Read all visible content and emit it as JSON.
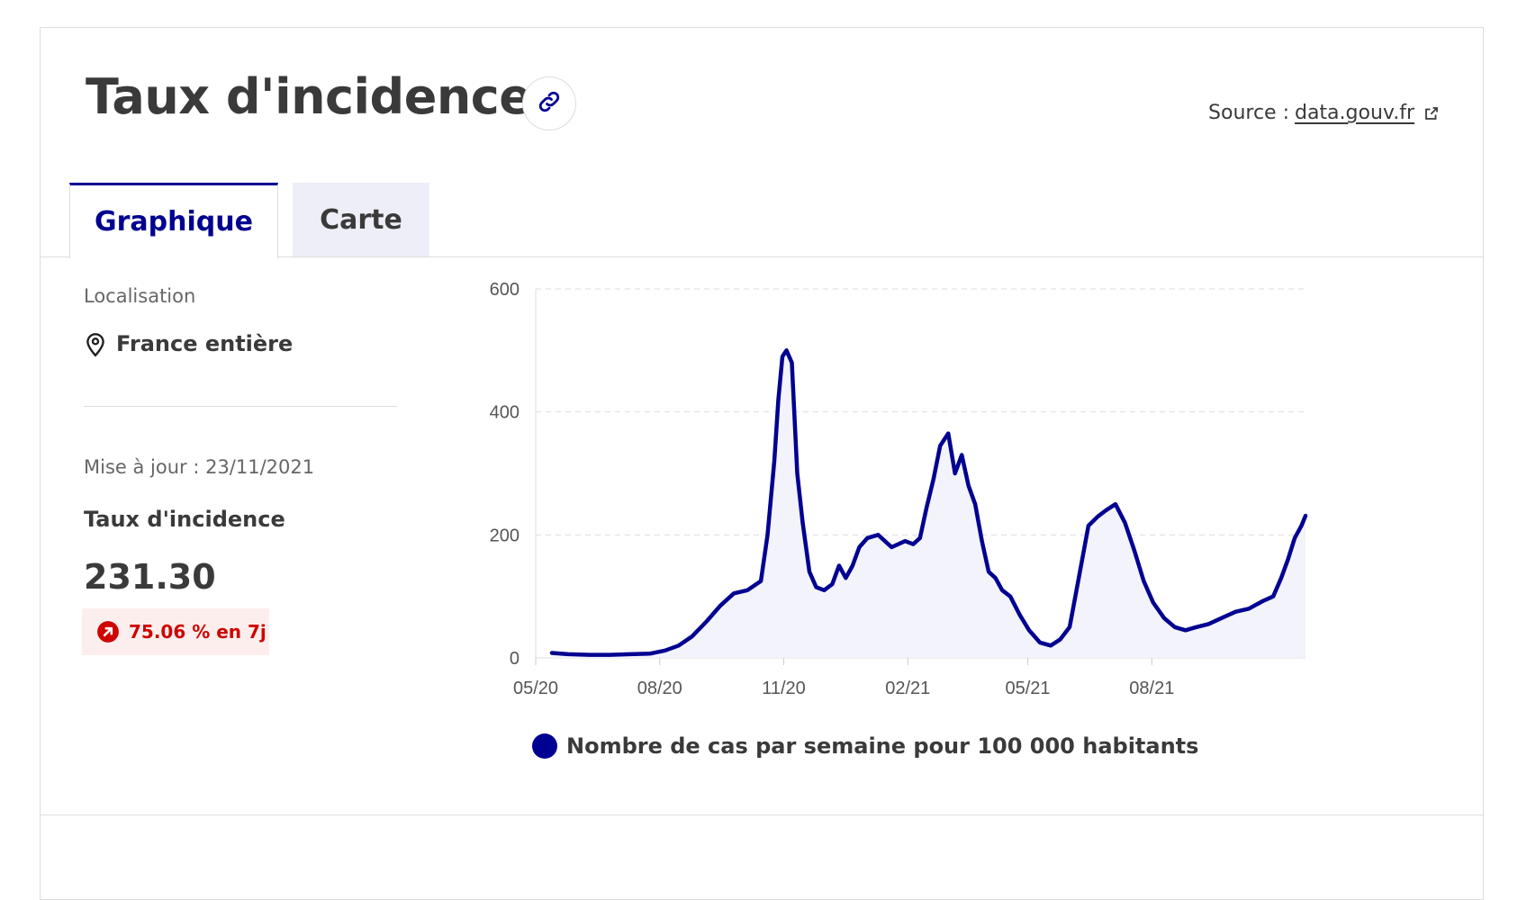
{
  "header": {
    "title": "Taux d'incidence",
    "link_icon": "link-icon",
    "source_label": "Source :",
    "source_link": "data.gouv.fr",
    "source_icon": "external-link-icon"
  },
  "tabs": [
    {
      "label": "Graphique",
      "active": true
    },
    {
      "label": "Carte",
      "active": false
    }
  ],
  "sidebar": {
    "location_label": "Localisation",
    "location_icon": "map-pin-icon",
    "location_value": "France entière",
    "updated": "Mise à jour : 23/11/2021",
    "metric_label": "Taux d'incidence",
    "metric_value": "231.30",
    "change_icon": "arrow-up-right-circle-icon",
    "change_text": "75.06 % en 7j"
  },
  "colors": {
    "accent": "#000091",
    "alert": "#ce0500",
    "alert_bg": "#fdeeee"
  },
  "chart_data": {
    "type": "area",
    "x_tick_labels": [
      "05/20",
      "08/20",
      "11/20",
      "02/21",
      "05/21",
      "08/21"
    ],
    "y_ticks": [
      0,
      200,
      400,
      600
    ],
    "ylim": [
      0,
      600
    ],
    "grid": true,
    "legend_position": "bottom",
    "series": [
      {
        "name": "Nombre de cas par semaine pour 100 000 habitants",
        "color": "#000091",
        "x": [
          "2020-05-13",
          "2020-05-25",
          "2020-06-10",
          "2020-06-25",
          "2020-07-10",
          "2020-07-25",
          "2020-08-05",
          "2020-08-15",
          "2020-08-25",
          "2020-09-05",
          "2020-09-15",
          "2020-09-25",
          "2020-10-05",
          "2020-10-15",
          "2020-10-20",
          "2020-10-25",
          "2020-10-28",
          "2020-10-31",
          "2020-11-03",
          "2020-11-07",
          "2020-11-11",
          "2020-11-15",
          "2020-11-20",
          "2020-11-25",
          "2020-12-01",
          "2020-12-07",
          "2020-12-12",
          "2020-12-17",
          "2020-12-22",
          "2020-12-27",
          "2021-01-02",
          "2021-01-10",
          "2021-01-20",
          "2021-01-30",
          "2021-02-05",
          "2021-02-10",
          "2021-02-15",
          "2021-02-20",
          "2021-02-25",
          "2021-03-03",
          "2021-03-08",
          "2021-03-13",
          "2021-03-18",
          "2021-03-23",
          "2021-03-28",
          "2021-04-02",
          "2021-04-07",
          "2021-04-12",
          "2021-04-18",
          "2021-04-25",
          "2021-05-02",
          "2021-05-10",
          "2021-05-18",
          "2021-05-25",
          "2021-06-01",
          "2021-06-07",
          "2021-06-15",
          "2021-06-22",
          "2021-06-28",
          "2021-07-05",
          "2021-07-12",
          "2021-07-19",
          "2021-07-26",
          "2021-08-02",
          "2021-08-10",
          "2021-08-18",
          "2021-08-26",
          "2021-09-03",
          "2021-09-12",
          "2021-09-22",
          "2021-10-02",
          "2021-10-12",
          "2021-10-22",
          "2021-10-30",
          "2021-11-05",
          "2021-11-10",
          "2021-11-15",
          "2021-11-20",
          "2021-11-23"
        ],
        "y": [
          8,
          6,
          5,
          5,
          6,
          7,
          12,
          20,
          35,
          60,
          85,
          105,
          110,
          125,
          200,
          320,
          420,
          490,
          500,
          480,
          300,
          220,
          140,
          115,
          110,
          120,
          150,
          130,
          150,
          180,
          195,
          200,
          180,
          190,
          185,
          195,
          245,
          290,
          345,
          365,
          300,
          330,
          280,
          250,
          190,
          140,
          130,
          110,
          100,
          70,
          45,
          25,
          20,
          30,
          50,
          120,
          215,
          230,
          240,
          250,
          220,
          175,
          125,
          90,
          65,
          50,
          45,
          50,
          55,
          65,
          75,
          80,
          92,
          100,
          130,
          160,
          195,
          215,
          231
        ]
      }
    ]
  }
}
